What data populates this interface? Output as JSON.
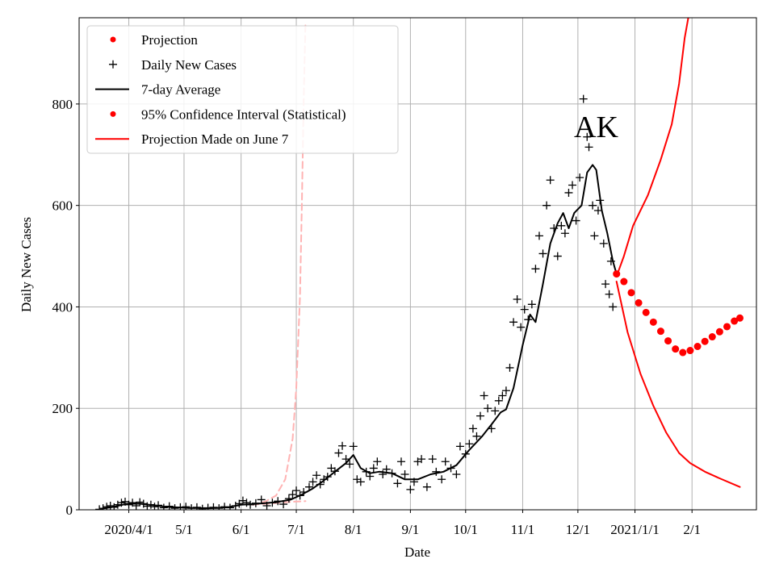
{
  "chart_data": {
    "type": "line",
    "xlabel": "Date",
    "ylabel": "Daily New Cases",
    "annotation": "AK",
    "xlim": [
      "2020-03-05",
      "2021-03-08"
    ],
    "ylim": [
      0,
      970
    ],
    "grid": true,
    "legend_position": "top-left",
    "x_ticks": [
      {
        "date": "2020-04-01",
        "label": "2020/4/1"
      },
      {
        "date": "2020-05-01",
        "label": "5/1"
      },
      {
        "date": "2020-06-01",
        "label": "6/1"
      },
      {
        "date": "2020-07-01",
        "label": "7/1"
      },
      {
        "date": "2020-08-01",
        "label": "8/1"
      },
      {
        "date": "2020-09-01",
        "label": "9/1"
      },
      {
        "date": "2020-10-01",
        "label": "10/1"
      },
      {
        "date": "2020-11-01",
        "label": "11/1"
      },
      {
        "date": "2020-12-01",
        "label": "12/1"
      },
      {
        "date": "2021-01-01",
        "label": "2021/1/1"
      },
      {
        "date": "2021-02-01",
        "label": "2/1"
      }
    ],
    "y_ticks": [
      {
        "value": 0,
        "label": "0"
      },
      {
        "value": 200,
        "label": "200"
      },
      {
        "value": 400,
        "label": "400"
      },
      {
        "value": 600,
        "label": "600"
      },
      {
        "value": 800,
        "label": "800"
      }
    ],
    "legend": [
      {
        "label": "Projection",
        "marker": "dot",
        "color": "#ff0000"
      },
      {
        "label": "Daily New Cases",
        "marker": "plus",
        "color": "#000000"
      },
      {
        "label": "7-day Average",
        "marker": "line",
        "color": "#000000"
      },
      {
        "label": "95% Confidence Interval (Statistical)",
        "marker": "dot",
        "color": "#ff0000"
      },
      {
        "label": "Projection Made on June 7",
        "marker": "line",
        "color": "#ff0000"
      }
    ],
    "series": [
      {
        "name": "7-day Average",
        "style": "line",
        "color": "#000000",
        "points": [
          [
            "2020-03-17",
            2
          ],
          [
            "2020-03-24",
            6
          ],
          [
            "2020-03-31",
            12
          ],
          [
            "2020-04-07",
            12
          ],
          [
            "2020-04-14",
            9
          ],
          [
            "2020-04-21",
            6
          ],
          [
            "2020-05-01",
            4
          ],
          [
            "2020-05-15",
            3
          ],
          [
            "2020-05-25",
            5
          ],
          [
            "2020-06-01",
            10
          ],
          [
            "2020-06-10",
            12
          ],
          [
            "2020-06-20",
            15
          ],
          [
            "2020-06-28",
            20
          ],
          [
            "2020-07-04",
            30
          ],
          [
            "2020-07-10",
            42
          ],
          [
            "2020-07-15",
            55
          ],
          [
            "2020-07-22",
            75
          ],
          [
            "2020-07-28",
            92
          ],
          [
            "2020-08-01",
            108
          ],
          [
            "2020-08-05",
            82
          ],
          [
            "2020-08-10",
            72
          ],
          [
            "2020-08-15",
            75
          ],
          [
            "2020-08-22",
            72
          ],
          [
            "2020-08-29",
            60
          ],
          [
            "2020-09-05",
            60
          ],
          [
            "2020-09-12",
            70
          ],
          [
            "2020-09-19",
            75
          ],
          [
            "2020-09-26",
            88
          ],
          [
            "2020-10-03",
            118
          ],
          [
            "2020-10-10",
            145
          ],
          [
            "2020-10-15",
            168
          ],
          [
            "2020-10-20",
            192
          ],
          [
            "2020-10-23",
            198
          ],
          [
            "2020-10-27",
            240
          ],
          [
            "2020-11-01",
            325
          ],
          [
            "2020-11-05",
            385
          ],
          [
            "2020-11-08",
            370
          ],
          [
            "2020-11-12",
            445
          ],
          [
            "2020-11-16",
            525
          ],
          [
            "2020-11-20",
            565
          ],
          [
            "2020-11-23",
            585
          ],
          [
            "2020-11-26",
            555
          ],
          [
            "2020-11-29",
            585
          ],
          [
            "2020-12-03",
            600
          ],
          [
            "2020-12-06",
            665
          ],
          [
            "2020-12-09",
            680
          ],
          [
            "2020-12-11",
            670
          ],
          [
            "2020-12-14",
            590
          ],
          [
            "2020-12-17",
            545
          ],
          [
            "2020-12-20",
            490
          ],
          [
            "2020-12-22",
            465
          ]
        ]
      },
      {
        "name": "Projection",
        "style": "dots",
        "color": "#ff0000",
        "points": [
          [
            "2020-12-22",
            465
          ],
          [
            "2020-12-26",
            450
          ],
          [
            "2020-12-30",
            428
          ],
          [
            "2021-01-03",
            408
          ],
          [
            "2021-01-07",
            389
          ],
          [
            "2021-01-11",
            370
          ],
          [
            "2021-01-15",
            352
          ],
          [
            "2021-01-19",
            333
          ],
          [
            "2021-01-23",
            317
          ],
          [
            "2021-01-27",
            310
          ],
          [
            "2021-01-31",
            314
          ],
          [
            "2021-02-04",
            322
          ],
          [
            "2021-02-08",
            332
          ],
          [
            "2021-02-12",
            341
          ],
          [
            "2021-02-16",
            351
          ],
          [
            "2021-02-20",
            361
          ],
          [
            "2021-02-24",
            372
          ],
          [
            "2021-02-27",
            378
          ]
        ]
      },
      {
        "name": "95% Confidence Interval (Statistical)",
        "style": "line",
        "color": "#ff0000",
        "bound": "upper",
        "points": [
          [
            "2020-12-22",
            460
          ],
          [
            "2020-12-26",
            500
          ],
          [
            "2020-12-31",
            560
          ],
          [
            "2021-01-08",
            620
          ],
          [
            "2021-01-15",
            690
          ],
          [
            "2021-01-21",
            760
          ],
          [
            "2021-01-25",
            840
          ],
          [
            "2021-01-28",
            930
          ],
          [
            "2021-01-30",
            970
          ]
        ]
      },
      {
        "name": "95% Confidence Interval (Statistical)",
        "style": "line",
        "color": "#ff0000",
        "bound": "lower",
        "points": [
          [
            "2020-12-22",
            450
          ],
          [
            "2020-12-28",
            350
          ],
          [
            "2021-01-04",
            268
          ],
          [
            "2021-01-11",
            205
          ],
          [
            "2021-01-18",
            152
          ],
          [
            "2021-01-25",
            112
          ],
          [
            "2021-01-31",
            92
          ],
          [
            "2021-02-08",
            75
          ],
          [
            "2021-02-16",
            62
          ],
          [
            "2021-02-27",
            45
          ]
        ]
      },
      {
        "name": "Projection Made on June 7",
        "style": "dashed",
        "color": "#ffb3b3",
        "points": [
          [
            "2020-06-07",
            10
          ],
          [
            "2020-06-14",
            16
          ],
          [
            "2020-06-20",
            28
          ],
          [
            "2020-06-25",
            60
          ],
          [
            "2020-06-29",
            140
          ],
          [
            "2020-07-01",
            240
          ],
          [
            "2020-07-03",
            420
          ],
          [
            "2020-07-04",
            600
          ],
          [
            "2020-07-05",
            800
          ],
          [
            "2020-07-06",
            960
          ]
        ]
      },
      {
        "name": "Projection Made on June 7",
        "style": "dashed",
        "color": "#ffb3b3",
        "points": [
          [
            "2020-06-07",
            10
          ],
          [
            "2020-06-15",
            12
          ],
          [
            "2020-06-22",
            14
          ],
          [
            "2020-06-30",
            16
          ],
          [
            "2020-07-06",
            17
          ]
        ]
      },
      {
        "name": "Daily New Cases",
        "style": "plus",
        "color": "#000000",
        "points": [
          [
            "2020-03-16",
            1
          ],
          [
            "2020-03-18",
            3
          ],
          [
            "2020-03-20",
            6
          ],
          [
            "2020-03-22",
            8
          ],
          [
            "2020-03-24",
            5
          ],
          [
            "2020-03-26",
            10
          ],
          [
            "2020-03-28",
            14
          ],
          [
            "2020-03-30",
            16
          ],
          [
            "2020-04-01",
            10
          ],
          [
            "2020-04-03",
            14
          ],
          [
            "2020-04-05",
            8
          ],
          [
            "2020-04-07",
            15
          ],
          [
            "2020-04-09",
            12
          ],
          [
            "2020-04-11",
            7
          ],
          [
            "2020-04-13",
            10
          ],
          [
            "2020-04-15",
            6
          ],
          [
            "2020-04-17",
            9
          ],
          [
            "2020-04-20",
            4
          ],
          [
            "2020-04-23",
            7
          ],
          [
            "2020-04-26",
            3
          ],
          [
            "2020-04-29",
            5
          ],
          [
            "2020-05-02",
            6
          ],
          [
            "2020-05-05",
            3
          ],
          [
            "2020-05-08",
            5
          ],
          [
            "2020-05-11",
            2
          ],
          [
            "2020-05-14",
            4
          ],
          [
            "2020-05-17",
            5
          ],
          [
            "2020-05-20",
            3
          ],
          [
            "2020-05-23",
            6
          ],
          [
            "2020-05-26",
            4
          ],
          [
            "2020-05-29",
            8
          ],
          [
            "2020-05-31",
            12
          ],
          [
            "2020-06-02",
            18
          ],
          [
            "2020-06-04",
            14
          ],
          [
            "2020-06-06",
            10
          ],
          [
            "2020-06-09",
            13
          ],
          [
            "2020-06-12",
            20
          ],
          [
            "2020-06-15",
            8
          ],
          [
            "2020-06-18",
            14
          ],
          [
            "2020-06-21",
            17
          ],
          [
            "2020-06-24",
            11
          ],
          [
            "2020-06-27",
            22
          ],
          [
            "2020-06-29",
            30
          ],
          [
            "2020-07-01",
            38
          ],
          [
            "2020-07-03",
            28
          ],
          [
            "2020-07-05",
            35
          ],
          [
            "2020-07-08",
            45
          ],
          [
            "2020-07-10",
            55
          ],
          [
            "2020-07-12",
            68
          ],
          [
            "2020-07-14",
            50
          ],
          [
            "2020-07-16",
            60
          ],
          [
            "2020-07-18",
            65
          ],
          [
            "2020-07-20",
            82
          ],
          [
            "2020-07-22",
            76
          ],
          [
            "2020-07-24",
            112
          ],
          [
            "2020-07-26",
            126
          ],
          [
            "2020-07-28",
            100
          ],
          [
            "2020-07-30",
            90
          ],
          [
            "2020-08-01",
            125
          ],
          [
            "2020-08-03",
            60
          ],
          [
            "2020-08-05",
            55
          ],
          [
            "2020-08-08",
            75
          ],
          [
            "2020-08-10",
            66
          ],
          [
            "2020-08-12",
            82
          ],
          [
            "2020-08-14",
            95
          ],
          [
            "2020-08-17",
            70
          ],
          [
            "2020-08-19",
            80
          ],
          [
            "2020-08-22",
            72
          ],
          [
            "2020-08-25",
            52
          ],
          [
            "2020-08-27",
            95
          ],
          [
            "2020-08-29",
            70
          ],
          [
            "2020-09-01",
            40
          ],
          [
            "2020-09-03",
            55
          ],
          [
            "2020-09-05",
            95
          ],
          [
            "2020-09-07",
            100
          ],
          [
            "2020-09-10",
            45
          ],
          [
            "2020-09-13",
            100
          ],
          [
            "2020-09-15",
            75
          ],
          [
            "2020-09-18",
            60
          ],
          [
            "2020-09-20",
            95
          ],
          [
            "2020-09-23",
            82
          ],
          [
            "2020-09-26",
            70
          ],
          [
            "2020-09-28",
            125
          ],
          [
            "2020-10-01",
            110
          ],
          [
            "2020-10-03",
            130
          ],
          [
            "2020-10-05",
            160
          ],
          [
            "2020-10-07",
            145
          ],
          [
            "2020-10-09",
            185
          ],
          [
            "2020-10-11",
            225
          ],
          [
            "2020-10-13",
            200
          ],
          [
            "2020-10-15",
            160
          ],
          [
            "2020-10-17",
            195
          ],
          [
            "2020-10-19",
            215
          ],
          [
            "2020-10-21",
            225
          ],
          [
            "2020-10-23",
            235
          ],
          [
            "2020-10-25",
            280
          ],
          [
            "2020-10-27",
            370
          ],
          [
            "2020-10-29",
            415
          ],
          [
            "2020-10-31",
            360
          ],
          [
            "2020-11-02",
            395
          ],
          [
            "2020-11-04",
            375
          ],
          [
            "2020-11-06",
            405
          ],
          [
            "2020-11-08",
            475
          ],
          [
            "2020-11-10",
            540
          ],
          [
            "2020-11-12",
            505
          ],
          [
            "2020-11-14",
            600
          ],
          [
            "2020-11-16",
            650
          ],
          [
            "2020-11-18",
            555
          ],
          [
            "2020-11-20",
            500
          ],
          [
            "2020-11-22",
            560
          ],
          [
            "2020-11-24",
            545
          ],
          [
            "2020-11-26",
            625
          ],
          [
            "2020-11-28",
            640
          ],
          [
            "2020-11-30",
            570
          ],
          [
            "2020-12-02",
            655
          ],
          [
            "2020-12-04",
            810
          ],
          [
            "2020-12-06",
            735
          ],
          [
            "2020-12-07",
            715
          ],
          [
            "2020-12-09",
            600
          ],
          [
            "2020-12-10",
            540
          ],
          [
            "2020-12-12",
            590
          ],
          [
            "2020-12-13",
            610
          ],
          [
            "2020-12-15",
            525
          ],
          [
            "2020-12-16",
            445
          ],
          [
            "2020-12-18",
            425
          ],
          [
            "2020-12-19",
            490
          ],
          [
            "2020-12-20",
            400
          ]
        ]
      }
    ]
  }
}
